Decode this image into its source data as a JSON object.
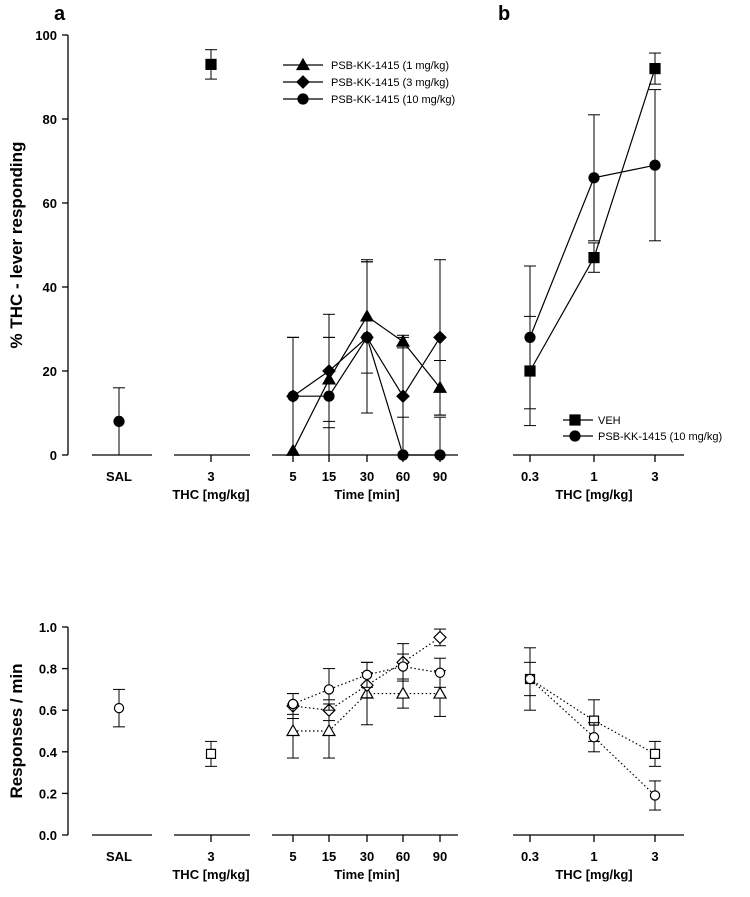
{
  "chart_data": [
    {
      "panel": "a",
      "type": "scatter",
      "ylabel": "% THC - lever responding",
      "ylim": [
        0,
        100
      ],
      "yticks": [
        0,
        20,
        40,
        60,
        80,
        100
      ],
      "groups": [
        {
          "label": "SAL",
          "xlabel": "",
          "marker": "circle",
          "fill": "filled",
          "points": [
            {
              "y": 8,
              "err": 8
            }
          ]
        },
        {
          "label": "3",
          "xlabel": "THC [mg/kg]",
          "marker": "square",
          "fill": "filled",
          "points": [
            {
              "y": 93,
              "err": 3.5
            }
          ]
        }
      ],
      "time_course": {
        "type": "line",
        "xlabel": "Time [min]",
        "x": [
          5,
          15,
          30,
          60,
          90
        ],
        "legend_position": "top-right",
        "series": [
          {
            "name": "PSB-KK-1415 (1 mg/kg)",
            "marker": "triangle",
            "values": [
              1,
              18,
              33,
              27,
              16
            ],
            "err": [
              27,
              10,
              13.5,
              1.5,
              6.5
            ]
          },
          {
            "name": "PSB-KK-1415 (3 mg/kg)",
            "marker": "diamond",
            "values": [
              14,
              20,
              28,
              14,
              28
            ],
            "err": [
              14,
              13.5,
              18,
              14,
              18.5
            ]
          },
          {
            "name": "PSB-KK-1415 (10 mg/kg)",
            "marker": "circle",
            "values": [
              14,
              14,
              28,
              0,
              0
            ],
            "err": [
              14,
              14,
              18,
              9,
              9
            ]
          }
        ]
      }
    },
    {
      "panel": "b",
      "type": "line",
      "xlabel": "THC [mg/kg]",
      "categories": [
        "0.3",
        "1",
        "3"
      ],
      "ylim": [
        0,
        100
      ],
      "legend_position": "bottom-right",
      "series": [
        {
          "name": "VEH",
          "marker": "square",
          "values": [
            20,
            47,
            92
          ],
          "err": [
            13,
            3.5,
            3.7
          ]
        },
        {
          "name": "PSB-KK-1415 (10 mg/kg)",
          "marker": "circle",
          "values": [
            28,
            66,
            69
          ],
          "err": [
            17,
            15,
            18
          ]
        }
      ]
    },
    {
      "panel": "a-rate",
      "type": "scatter",
      "ylabel": "Responses / min",
      "ylim": [
        0,
        1.0
      ],
      "yticks": [
        "0.0",
        "0.2",
        "0.4",
        "0.6",
        "0.8",
        "1.0"
      ],
      "groups": [
        {
          "label": "SAL",
          "xlabel": "",
          "marker": "circle",
          "fill": "open",
          "points": [
            {
              "y": 0.61,
              "err": 0.09
            }
          ]
        },
        {
          "label": "3",
          "xlabel": "THC [mg/kg]",
          "marker": "square",
          "fill": "open",
          "points": [
            {
              "y": 0.39,
              "err": 0.06
            }
          ]
        }
      ],
      "time_course": {
        "type": "line",
        "xlabel": "Time [min]",
        "x": [
          5,
          15,
          30,
          60,
          90
        ],
        "series": [
          {
            "name": "PSB-KK-1415 (1 mg/kg)",
            "marker": "triangle",
            "values": [
              0.5,
              0.5,
              0.68,
              0.68,
              0.68
            ],
            "err": [
              0.13,
              0.13,
              0.15,
              0.07,
              0.11
            ]
          },
          {
            "name": "PSB-KK-1415 (3 mg/kg)",
            "marker": "diamond",
            "values": [
              0.62,
              0.6,
              0.72,
              0.83,
              0.95
            ],
            "err": [
              0.06,
              0.05,
              0.06,
              0.09,
              0.04
            ]
          },
          {
            "name": "PSB-KK-1415 (10 mg/kg)",
            "marker": "circle",
            "values": [
              0.63,
              0.7,
              0.77,
              0.81,
              0.78
            ],
            "err": [
              0.05,
              0.1,
              0.06,
              0.06,
              0.07
            ]
          }
        ]
      }
    },
    {
      "panel": "b-rate",
      "type": "line",
      "xlabel": "THC [mg/kg]",
      "categories": [
        "0.3",
        "1",
        "3"
      ],
      "ylim": [
        0,
        1.0
      ],
      "series": [
        {
          "name": "VEH",
          "marker": "square",
          "values": [
            0.75,
            0.55,
            0.39
          ],
          "err": [
            0.08,
            0.1,
            0.06
          ]
        },
        {
          "name": "PSB-KK-1415 (10 mg/kg)",
          "marker": "circle",
          "values": [
            0.75,
            0.47,
            0.19
          ],
          "err": [
            0.15,
            0.07,
            0.07
          ]
        }
      ]
    }
  ],
  "labels": {
    "panel_a": "a",
    "panel_b": "b"
  }
}
